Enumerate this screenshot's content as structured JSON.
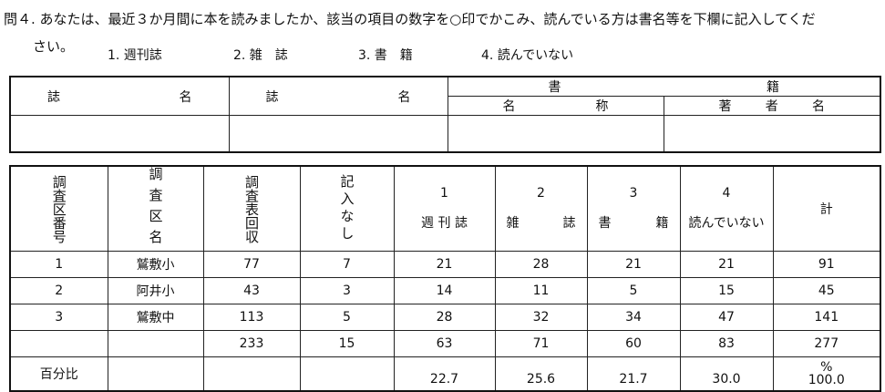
{
  "question": {
    "line1": "問４. あなたは、最近３か月間に本を読みましたか、該当の項目の数字を○印でかこみ、読んでいる方は書名等を下欄に記入してくだ",
    "line2": "さい。",
    "options": [
      "1. 週刊誌",
      "2. 雑　誌",
      "3. 書　籍",
      "4. 読んでいない"
    ]
  },
  "entry_table": {
    "col1": [
      "誌",
      "名"
    ],
    "col2": [
      "誌",
      "名"
    ],
    "books": [
      "書",
      "籍"
    ],
    "book_title": [
      "名",
      "称"
    ],
    "author": [
      "著",
      "者",
      "名"
    ]
  },
  "survey_table": {
    "headers": {
      "district_no": "調査区番号",
      "district_name": "調査区名",
      "collected": "調査表回収",
      "no_entry": "記入なし",
      "c1_num": "1",
      "c1": "週 刊 誌",
      "c2_num": "2",
      "c2_a": "雑",
      "c2_b": "誌",
      "c3_num": "3",
      "c3_a": "書",
      "c3_b": "籍",
      "c4_num": "4",
      "c4": "読んでいない",
      "total": "計"
    },
    "rows": [
      {
        "no": "1",
        "name": "鷲敷小",
        "collected": "77",
        "no_entry": "7",
        "weekly": "21",
        "magazine": "28",
        "books": "21",
        "none": "21",
        "total": "91"
      },
      {
        "no": "2",
        "name": "阿井小",
        "collected": "43",
        "no_entry": "3",
        "weekly": "14",
        "magazine": "11",
        "books": "5",
        "none": "15",
        "total": "45"
      },
      {
        "no": "3",
        "name": "鷲敷中",
        "collected": "113",
        "no_entry": "5",
        "weekly": "28",
        "magazine": "32",
        "books": "34",
        "none": "47",
        "total": "141"
      },
      {
        "no": "",
        "name": "",
        "collected": "233",
        "no_entry": "15",
        "weekly": "63",
        "magazine": "71",
        "books": "60",
        "none": "83",
        "total": "277"
      }
    ],
    "percent_row": {
      "label": "百分比",
      "weekly": "22.7",
      "magazine": "25.6",
      "books": "21.7",
      "none": "30.0",
      "unit": "%",
      "total": "100.0"
    }
  }
}
